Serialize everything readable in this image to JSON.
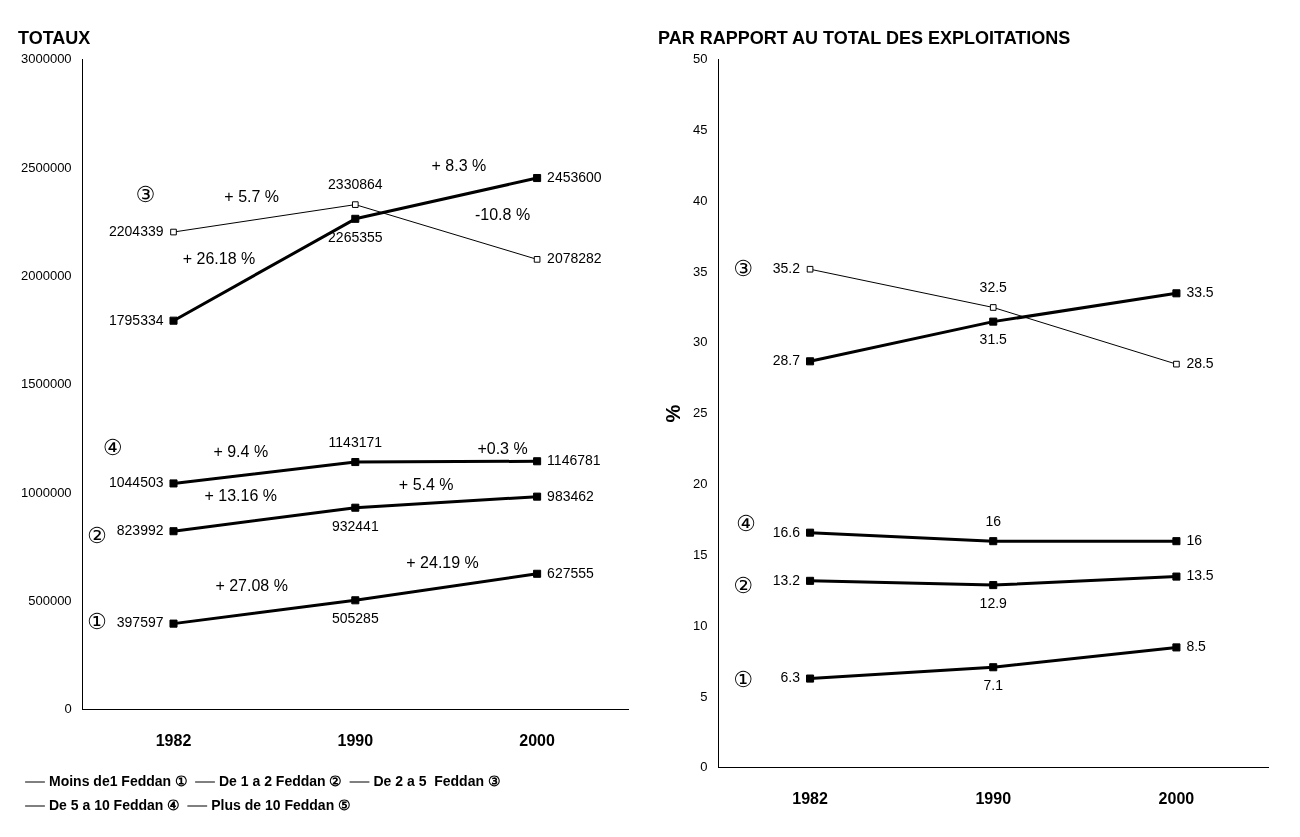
{
  "chart_data": [
    {
      "type": "line",
      "title": "TOTAUX",
      "categories": [
        "1982",
        "1990",
        "2000"
      ],
      "ylim": [
        0,
        3000000
      ],
      "yticks": [
        0,
        500000,
        1000000,
        1500000,
        2000000,
        2500000,
        3000000
      ],
      "grid": false,
      "legend": "bottom",
      "marker": "square",
      "data_labels": true,
      "series": [
        {
          "name": "Moins de1 Feddan ①",
          "color": "#000000",
          "values": [
            397597,
            505285,
            627555
          ]
        },
        {
          "name": "De 1 a 2 Feddan ②",
          "color": "#000000",
          "values": [
            823992,
            932441,
            983462
          ]
        },
        {
          "name": "De 2 a 5  Feddan ③",
          "color": "#000000",
          "values": [
            2204339,
            2330864,
            2078282
          ]
        },
        {
          "name": "De 5 a 10 Feddan ④",
          "color": "#000000",
          "values": [
            1044503,
            1143171,
            1146781
          ]
        },
        {
          "name": "Plus de 10 Feddan ⑤",
          "color": "#000000",
          "values": [
            1795334,
            2265355,
            2453600
          ]
        }
      ],
      "annotations": [
        "+ 5.7 %",
        "+ 26.18 %",
        "+ 8.3 %",
        "-10.8 %",
        "+ 9.4 %",
        "+0.3 %",
        "+ 13.16 %",
        "+ 5.4 %",
        "+ 27.08 %",
        "+ 24.19 %",
        "③",
        "④",
        "②",
        "①"
      ]
    },
    {
      "type": "line",
      "title": "PAR RAPPORT AU TOTAL DES EXPLOITATIONS",
      "ylabel": "%",
      "categories": [
        "1982",
        "1990",
        "2000"
      ],
      "ylim": [
        0,
        50
      ],
      "yticks": [
        0,
        5,
        10,
        15,
        20,
        25,
        30,
        35,
        40,
        45,
        50
      ],
      "grid": false,
      "marker": "square",
      "data_labels": true,
      "series": [
        {
          "color": "#000000",
          "values": [
            6.3,
            7.1,
            8.5
          ]
        },
        {
          "color": "#000000",
          "values": [
            13.2,
            12.9,
            13.5
          ]
        },
        {
          "color": "#000000",
          "values": [
            35.2,
            32.5,
            28.5
          ]
        },
        {
          "color": "#000000",
          "values": [
            16.6,
            16,
            16
          ]
        },
        {
          "color": "#000000",
          "values": [
            28.7,
            31.5,
            33.5
          ]
        }
      ],
      "annotations": [
        "③",
        "④",
        "②",
        "①"
      ]
    }
  ]
}
